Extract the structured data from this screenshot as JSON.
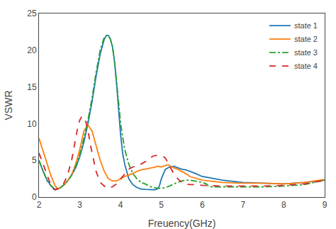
{
  "chart_data": {
    "type": "line",
    "xlabel": "Freuency(GHz)",
    "ylabel": "VSWR",
    "xlim": [
      2,
      9
    ],
    "ylim": [
      0,
      25
    ],
    "xticks": [
      2,
      3,
      4,
      5,
      6,
      7,
      8,
      9
    ],
    "yticks": [
      0,
      5,
      10,
      15,
      20,
      25
    ],
    "grid": false,
    "legend": "upper right",
    "series": [
      {
        "name": "state 1",
        "line_style": "solid",
        "x": [
          2.0,
          2.1,
          2.2,
          2.3,
          2.4,
          2.5,
          2.6,
          2.7,
          2.8,
          2.9,
          3.0,
          3.1,
          3.2,
          3.3,
          3.4,
          3.5,
          3.6,
          3.65,
          3.7,
          3.75,
          3.8,
          3.85,
          3.9,
          3.95,
          4.0,
          4.05,
          4.1,
          4.2,
          4.3,
          4.4,
          4.5,
          4.6,
          4.65,
          4.7,
          4.75,
          4.8,
          4.85,
          4.9,
          4.95,
          5.0,
          5.05,
          5.1,
          5.2,
          5.3,
          5.4,
          5.5,
          5.6,
          5.7,
          5.8,
          6.0,
          6.5,
          7.0,
          7.5,
          8.0,
          8.5,
          9.0
        ],
        "values": [
          5.0,
          3.5,
          2.3,
          1.5,
          1.0,
          1.2,
          1.6,
          2.2,
          3.0,
          4.0,
          5.5,
          7.5,
          10.0,
          13.0,
          16.5,
          19.5,
          21.5,
          22.0,
          22.0,
          21.5,
          20.5,
          18.5,
          15.5,
          12.0,
          8.5,
          6.0,
          4.5,
          2.5,
          1.7,
          1.3,
          1.1,
          1.05,
          1.02,
          1.0,
          1.0,
          1.0,
          1.0,
          1.1,
          1.5,
          2.5,
          3.2,
          3.8,
          4.1,
          4.2,
          4.0,
          3.8,
          3.7,
          3.5,
          3.3,
          2.8,
          2.3,
          2.0,
          1.9,
          1.8,
          2.0,
          2.3
        ]
      },
      {
        "name": "state 2",
        "line_style": "solid",
        "x": [
          2.0,
          2.1,
          2.2,
          2.3,
          2.4,
          2.45,
          2.5,
          2.6,
          2.7,
          2.8,
          2.9,
          3.0,
          3.1,
          3.2,
          3.3,
          3.35,
          3.4,
          3.5,
          3.6,
          3.7,
          3.8,
          3.9,
          4.0,
          4.1,
          4.2,
          4.3,
          4.4,
          4.5,
          4.6,
          4.7,
          4.8,
          4.85,
          4.9,
          5.0,
          5.1,
          5.15,
          5.2,
          5.3,
          5.4,
          5.5,
          5.6,
          5.7,
          6.0,
          6.5,
          7.0,
          7.5,
          8.0,
          8.5,
          9.0
        ],
        "values": [
          8.0,
          6.2,
          4.5,
          2.8,
          1.5,
          1.2,
          1.2,
          1.6,
          2.2,
          3.0,
          4.5,
          6.5,
          9.0,
          9.8,
          9.0,
          8.0,
          7.0,
          5.0,
          3.5,
          2.5,
          2.2,
          2.2,
          2.5,
          2.8,
          3.0,
          3.2,
          3.5,
          3.7,
          3.8,
          3.9,
          4.0,
          4.1,
          4.2,
          4.1,
          4.3,
          4.4,
          4.3,
          4.0,
          3.8,
          3.5,
          3.2,
          2.8,
          2.3,
          2.0,
          1.9,
          1.9,
          1.8,
          2.0,
          2.4
        ]
      },
      {
        "name": "state 3",
        "line_style": "dashdot",
        "x": [
          2.0,
          2.1,
          2.2,
          2.3,
          2.4,
          2.5,
          2.6,
          2.7,
          2.8,
          2.9,
          3.0,
          3.1,
          3.2,
          3.3,
          3.4,
          3.5,
          3.6,
          3.65,
          3.7,
          3.75,
          3.8,
          3.85,
          3.9,
          3.95,
          4.0,
          4.1,
          4.2,
          4.3,
          4.4,
          4.5,
          4.6,
          4.7,
          4.8,
          4.9,
          5.0,
          5.1,
          5.2,
          5.3,
          5.4,
          5.5,
          5.6,
          5.7,
          5.8,
          6.0,
          6.1,
          6.15,
          6.2,
          6.5,
          7.0,
          7.5,
          8.0,
          8.5,
          9.0
        ],
        "values": [
          5.0,
          3.5,
          2.2,
          1.5,
          1.1,
          1.2,
          1.6,
          2.2,
          3.0,
          4.2,
          5.8,
          8.0,
          10.5,
          13.5,
          17.0,
          20.0,
          21.8,
          22.0,
          22.0,
          21.5,
          20.5,
          18.5,
          16.0,
          13.0,
          10.0,
          6.5,
          4.5,
          3.2,
          2.5,
          2.0,
          1.8,
          1.5,
          1.3,
          1.2,
          1.2,
          1.3,
          1.5,
          1.8,
          2.0,
          2.2,
          2.3,
          2.3,
          2.2,
          2.0,
          1.8,
          1.5,
          1.4,
          1.4,
          1.4,
          1.4,
          1.5,
          1.7,
          2.3
        ]
      },
      {
        "name": "state 4",
        "line_style": "dash",
        "x": [
          2.0,
          2.1,
          2.2,
          2.3,
          2.35,
          2.4,
          2.5,
          2.6,
          2.7,
          2.8,
          2.9,
          2.95,
          3.0,
          3.05,
          3.1,
          3.15,
          3.2,
          3.3,
          3.4,
          3.5,
          3.6,
          3.65,
          3.7,
          3.8,
          3.9,
          4.0,
          4.1,
          4.2,
          4.3,
          4.4,
          4.5,
          4.6,
          4.7,
          4.8,
          4.9,
          5.0,
          5.05,
          5.1,
          5.15,
          5.2,
          5.3,
          5.4,
          5.5,
          5.6,
          5.7,
          5.8,
          6.0,
          6.5,
          7.0,
          7.5,
          8.0,
          8.5,
          9.0
        ],
        "values": [
          6.0,
          4.5,
          2.8,
          1.5,
          1.1,
          1.0,
          1.2,
          1.8,
          3.0,
          5.0,
          8.0,
          9.5,
          10.5,
          11.0,
          10.8,
          10.2,
          9.0,
          6.0,
          3.5,
          2.0,
          1.5,
          1.3,
          1.2,
          1.4,
          1.8,
          2.5,
          3.2,
          3.8,
          4.1,
          4.3,
          4.5,
          4.8,
          5.2,
          5.6,
          5.7,
          5.6,
          5.5,
          5.3,
          4.8,
          4.2,
          3.2,
          2.5,
          2.0,
          1.8,
          1.7,
          1.7,
          1.6,
          1.5,
          1.5,
          1.5,
          1.6,
          1.8,
          2.3
        ]
      }
    ]
  }
}
